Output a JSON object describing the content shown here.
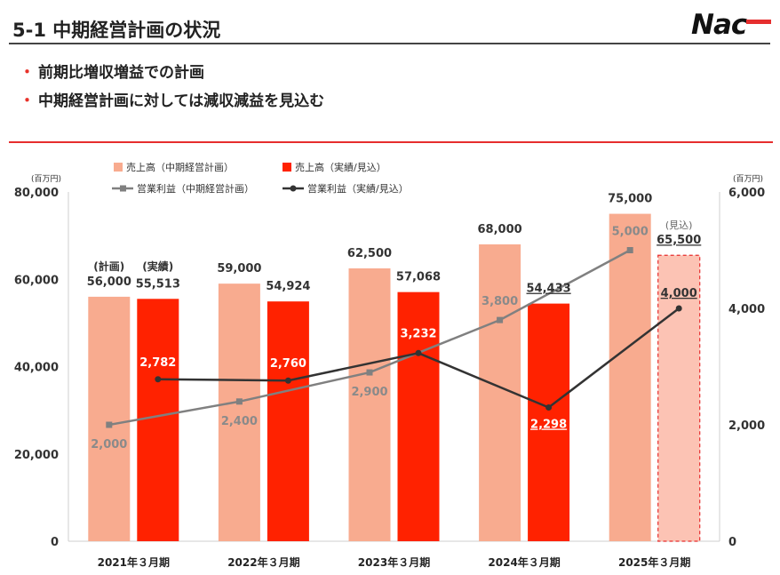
{
  "page": {
    "title": "5-1 中期経営計画の状況",
    "bullets": [
      "前期比増収増益での計画",
      "中期経営計画に対しては減収減益を見込む"
    ],
    "logo_text": "Nac"
  },
  "colors": {
    "plan_bar": "#f8ab8f",
    "actual_bar": "#ff2200",
    "forecast_bar": "#fcc3b4",
    "plan_line": "#808080",
    "actual_line": "#333333",
    "accent_red": "#e62e2e"
  },
  "chart_data": {
    "type": "bar",
    "categories": [
      "2021年３月期",
      "2022年３月期",
      "2023年３月期",
      "2024年３月期",
      "2025年３月期"
    ],
    "left_axis": {
      "unit_label": "(百万円)",
      "ylim": [
        0,
        80000
      ],
      "ticks": [
        "80,000",
        "60,000",
        "40,000",
        "20,000",
        "0"
      ]
    },
    "right_axis": {
      "unit_label": "(百万円)",
      "ylim": [
        0,
        6000
      ],
      "ticks": [
        "6,000",
        "4,000",
        "2,000",
        "0"
      ]
    },
    "legend": [
      {
        "label": "売上高（中期経営計画）",
        "kind": "bar-plan"
      },
      {
        "label": "売上高（実績/見込）",
        "kind": "bar-actual"
      },
      {
        "label": "営業利益（中期経営計画）",
        "kind": "line-plan"
      },
      {
        "label": "営業利益（実績/見込）",
        "kind": "line-actual"
      }
    ],
    "series": [
      {
        "name": "売上高（中期経営計画）",
        "axis": "left",
        "values": [
          56000,
          59000,
          62500,
          68000,
          75000
        ],
        "labels": [
          "56,000",
          "59,000",
          "62,500",
          "68,000",
          "75,000"
        ]
      },
      {
        "name": "売上高（実績/見込）",
        "axis": "left",
        "values": [
          55513,
          54924,
          57068,
          54433,
          65500
        ],
        "labels": [
          "55,513",
          "54,924",
          "57,068",
          "54,433",
          "65,500"
        ],
        "forecast_index": 4
      },
      {
        "name": "営業利益（中期経営計画）",
        "axis": "right",
        "values": [
          2000,
          2400,
          2900,
          3800,
          5000
        ],
        "labels": [
          "2,000",
          "2,400",
          "2,900",
          "3,800",
          "5,000"
        ]
      },
      {
        "name": "営業利益（実績/見込）",
        "axis": "right",
        "values": [
          2782,
          2760,
          3232,
          2298,
          4000
        ],
        "labels": [
          "2,782",
          "2,760",
          "3,232",
          "2,298",
          "4,000"
        ]
      }
    ],
    "annotations": {
      "plan_tag": "(計画)",
      "actual_tag": "(実績)",
      "forecast_tag": "(見込)"
    }
  }
}
